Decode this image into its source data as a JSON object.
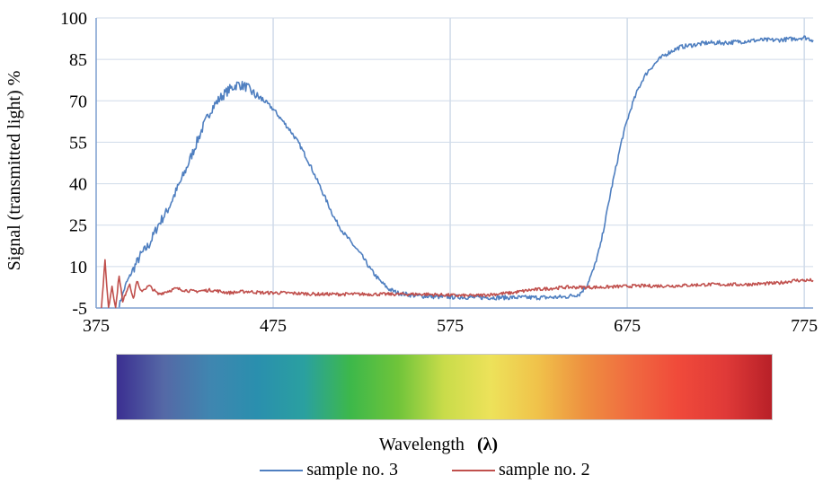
{
  "chart_data": {
    "type": "line",
    "ylabel": "Signal (transmitted light)  %",
    "xlabel": "Wavelength",
    "xlabel_symbol": "(λ)",
    "xlim": [
      375,
      780
    ],
    "ylim": [
      -5,
      100
    ],
    "xticks": [
      375,
      475,
      575,
      675,
      775
    ],
    "yticks": [
      -5,
      10,
      25,
      40,
      55,
      70,
      85,
      100
    ],
    "grid": true,
    "legend_position": "bottom",
    "series": [
      {
        "name": "sample no. 3",
        "color": "#4f7fc0",
        "x": [
          388,
          392,
          396,
          400,
          405,
          410,
          415,
          420,
          425,
          430,
          435,
          440,
          445,
          450,
          455,
          460,
          465,
          470,
          475,
          480,
          485,
          490,
          495,
          500,
          505,
          510,
          515,
          520,
          525,
          530,
          535,
          540,
          545,
          550,
          555,
          560,
          570,
          580,
          590,
          600,
          610,
          620,
          630,
          640,
          648,
          652,
          656,
          660,
          663,
          666,
          669,
          672,
          675,
          678,
          681,
          684,
          687,
          690,
          693,
          696,
          700,
          705,
          710,
          720,
          730,
          740,
          750,
          760,
          770,
          775,
          780
        ],
        "y": [
          -4,
          4,
          9,
          14,
          18,
          25,
          30,
          37,
          44,
          52,
          60,
          67,
          71,
          74,
          76,
          75,
          72,
          70,
          67,
          63,
          59,
          54,
          48,
          41,
          34,
          27,
          22,
          18,
          14,
          9,
          5,
          2,
          0.5,
          0,
          -0.5,
          -0.7,
          -1,
          -1,
          -1.2,
          -1.2,
          -1.2,
          -1.2,
          -1.2,
          -1,
          0,
          3,
          9,
          18,
          28,
          38,
          47,
          56,
          63,
          69,
          74,
          78,
          81,
          83,
          85,
          86.5,
          88,
          89.5,
          90,
          91,
          91,
          91.5,
          92,
          92,
          92.5,
          93,
          92
        ],
        "noise": 0.8
      },
      {
        "name": "sample no. 2",
        "color": "#c0504d",
        "x": [
          378,
          380,
          382,
          384,
          386,
          388,
          390,
          392,
          394,
          396,
          398,
          400,
          405,
          410,
          420,
          430,
          440,
          450,
          460,
          470,
          480,
          500,
          520,
          540,
          560,
          580,
          590,
          600,
          610,
          620,
          630,
          640,
          660,
          680,
          700,
          720,
          740,
          760,
          770,
          780
        ],
        "y": [
          -5,
          12,
          -5,
          3,
          -5,
          7,
          -3,
          1,
          4,
          -2,
          5,
          1,
          3,
          0,
          2,
          1,
          1.5,
          0.5,
          1,
          0.5,
          0.5,
          0,
          0,
          0,
          0,
          -0.5,
          -0.5,
          0,
          0.5,
          1.5,
          2,
          2.5,
          2.5,
          3,
          3,
          3.5,
          3.5,
          4,
          5,
          5
        ],
        "noise": 0.6
      }
    ],
    "spectrum_colors": [
      "#3b2f91",
      "#5568a6",
      "#3f86b0",
      "#2a8fae",
      "#2aa0a0",
      "#3db84a",
      "#6fc43a",
      "#c9dc4a",
      "#ede25a",
      "#f0c24a",
      "#ee9040",
      "#f06a40",
      "#f04a3a",
      "#e03a38",
      "#b82028"
    ]
  }
}
